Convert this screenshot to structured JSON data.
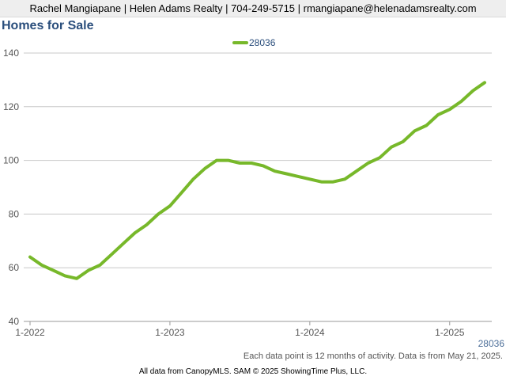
{
  "header": {
    "contact_line": "Rachel Mangiapane | Helen Adams Realty | 704-249-5715 | rmangiapane@helenadamsrealty.com"
  },
  "page_title": "Homes for Sale",
  "footer": {
    "note": "Each data point is 12 months of activity. Data is from May 21, 2025.",
    "copyright": "All data from CanopyMLS. SAM © 2025 ShowingTime Plus, LLC."
  },
  "colors": {
    "series": "#77b82a",
    "grid": "#c8c8c8",
    "title": "#2a4e7c",
    "axis_text": "#555555"
  },
  "chart_data": {
    "type": "line",
    "title": "Homes for Sale",
    "xlabel": "",
    "ylabel": "",
    "ylim": [
      40,
      140
    ],
    "y_ticks": [
      40,
      60,
      80,
      100,
      120,
      140
    ],
    "x_ticks": [
      "1-2022",
      "1-2023",
      "1-2024",
      "1-2025"
    ],
    "x": [
      "2022-01",
      "2022-02",
      "2022-03",
      "2022-04",
      "2022-05",
      "2022-06",
      "2022-07",
      "2022-08",
      "2022-09",
      "2022-10",
      "2022-11",
      "2022-12",
      "2023-01",
      "2023-02",
      "2023-03",
      "2023-04",
      "2023-05",
      "2023-06",
      "2023-07",
      "2023-08",
      "2023-09",
      "2023-10",
      "2023-11",
      "2023-12",
      "2024-01",
      "2024-02",
      "2024-03",
      "2024-04",
      "2024-05",
      "2024-06",
      "2024-07",
      "2024-08",
      "2024-09",
      "2024-10",
      "2024-11",
      "2024-12",
      "2025-01",
      "2025-02",
      "2025-03",
      "2025-04"
    ],
    "grid": true,
    "legend_position": "top-center",
    "series": [
      {
        "name": "28036",
        "values": [
          64,
          61,
          59,
          57,
          56,
          59,
          61,
          65,
          69,
          73,
          76,
          80,
          83,
          88,
          93,
          97,
          100,
          100,
          99,
          99,
          98,
          96,
          95,
          94,
          93,
          92,
          92,
          93,
          96,
          99,
          101,
          105,
          107,
          111,
          113,
          117,
          119,
          122,
          126,
          129
        ]
      }
    ],
    "corner_label": "28036"
  }
}
